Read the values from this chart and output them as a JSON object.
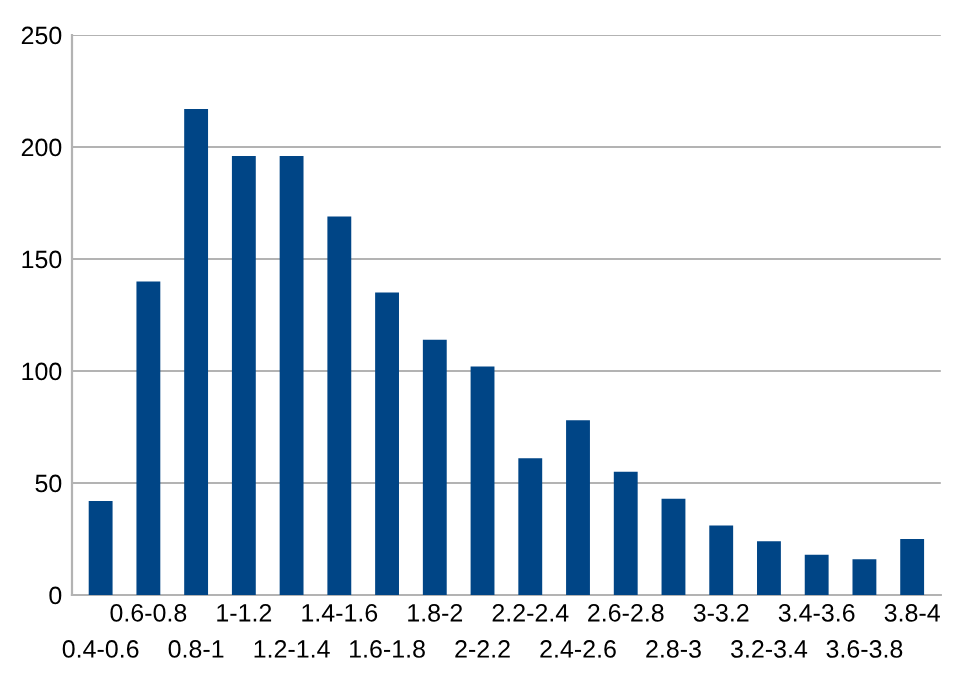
{
  "chart_data": {
    "type": "bar",
    "categories": [
      "0.4-0.6",
      "0.6-0.8",
      "0.8-1",
      "1-1.2",
      "1.2-1.4",
      "1.4-1.6",
      "1.6-1.8",
      "1.8-2",
      "2-2.2",
      "2.2-2.4",
      "2.4-2.6",
      "2.6-2.8",
      "2.8-3",
      "3-3.2",
      "3.2-3.4",
      "3.4-3.6",
      "3.6-3.8",
      "3.8-4"
    ],
    "values": [
      42,
      140,
      217,
      196,
      196,
      169,
      135,
      114,
      102,
      61,
      78,
      55,
      43,
      31,
      24,
      18,
      16,
      25
    ],
    "color": "#004586",
    "ylim": [
      0,
      250
    ],
    "yticks": [
      0,
      50,
      100,
      150,
      200,
      250
    ],
    "grid": "y"
  }
}
